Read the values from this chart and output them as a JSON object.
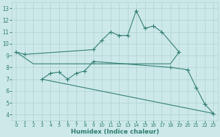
{
  "xlabel": "Humidex (Indice chaleur)",
  "bg_color": "#cce8e8",
  "line_color": "#2e7d6e",
  "grid_color": "#b0d0d0",
  "xlim": [
    -0.5,
    23.5
  ],
  "ylim": [
    3.5,
    13.5
  ],
  "xticks": [
    0,
    1,
    2,
    3,
    4,
    5,
    6,
    7,
    8,
    9,
    10,
    11,
    12,
    13,
    14,
    15,
    16,
    17,
    18,
    19,
    20,
    21,
    22,
    23
  ],
  "yticks": [
    4,
    5,
    6,
    7,
    8,
    9,
    10,
    11,
    12,
    13
  ],
  "line1": {
    "x": [
      0,
      1,
      9,
      10,
      11,
      12,
      13,
      14,
      15,
      16,
      17,
      19
    ],
    "y": [
      9.3,
      9.1,
      9.5,
      10.3,
      11.0,
      10.7,
      10.7,
      12.8,
      11.3,
      11.5,
      11.0,
      9.3
    ],
    "has_markers": true
  },
  "line2": {
    "x": [
      0,
      2,
      3,
      4,
      5,
      6,
      7,
      8,
      9,
      10,
      11,
      12,
      13,
      14,
      15,
      16,
      17,
      18,
      19
    ],
    "y": [
      9.3,
      8.3,
      8.3,
      8.3,
      8.3,
      8.3,
      8.3,
      8.3,
      8.3,
      8.3,
      8.3,
      8.3,
      8.3,
      8.3,
      8.3,
      8.3,
      8.3,
      8.3,
      9.3
    ],
    "has_markers": false
  },
  "line3": {
    "x": [
      3,
      4,
      5,
      6,
      7,
      8,
      9,
      18,
      20,
      21,
      22,
      23
    ],
    "y": [
      7.0,
      7.5,
      7.6,
      7.0,
      7.5,
      7.7,
      8.5,
      8.0,
      7.8,
      6.3,
      4.9,
      4.1
    ],
    "has_markers": true
  },
  "line4": {
    "x": [
      3,
      23
    ],
    "y": [
      7.0,
      4.1
    ],
    "has_markers": false
  }
}
